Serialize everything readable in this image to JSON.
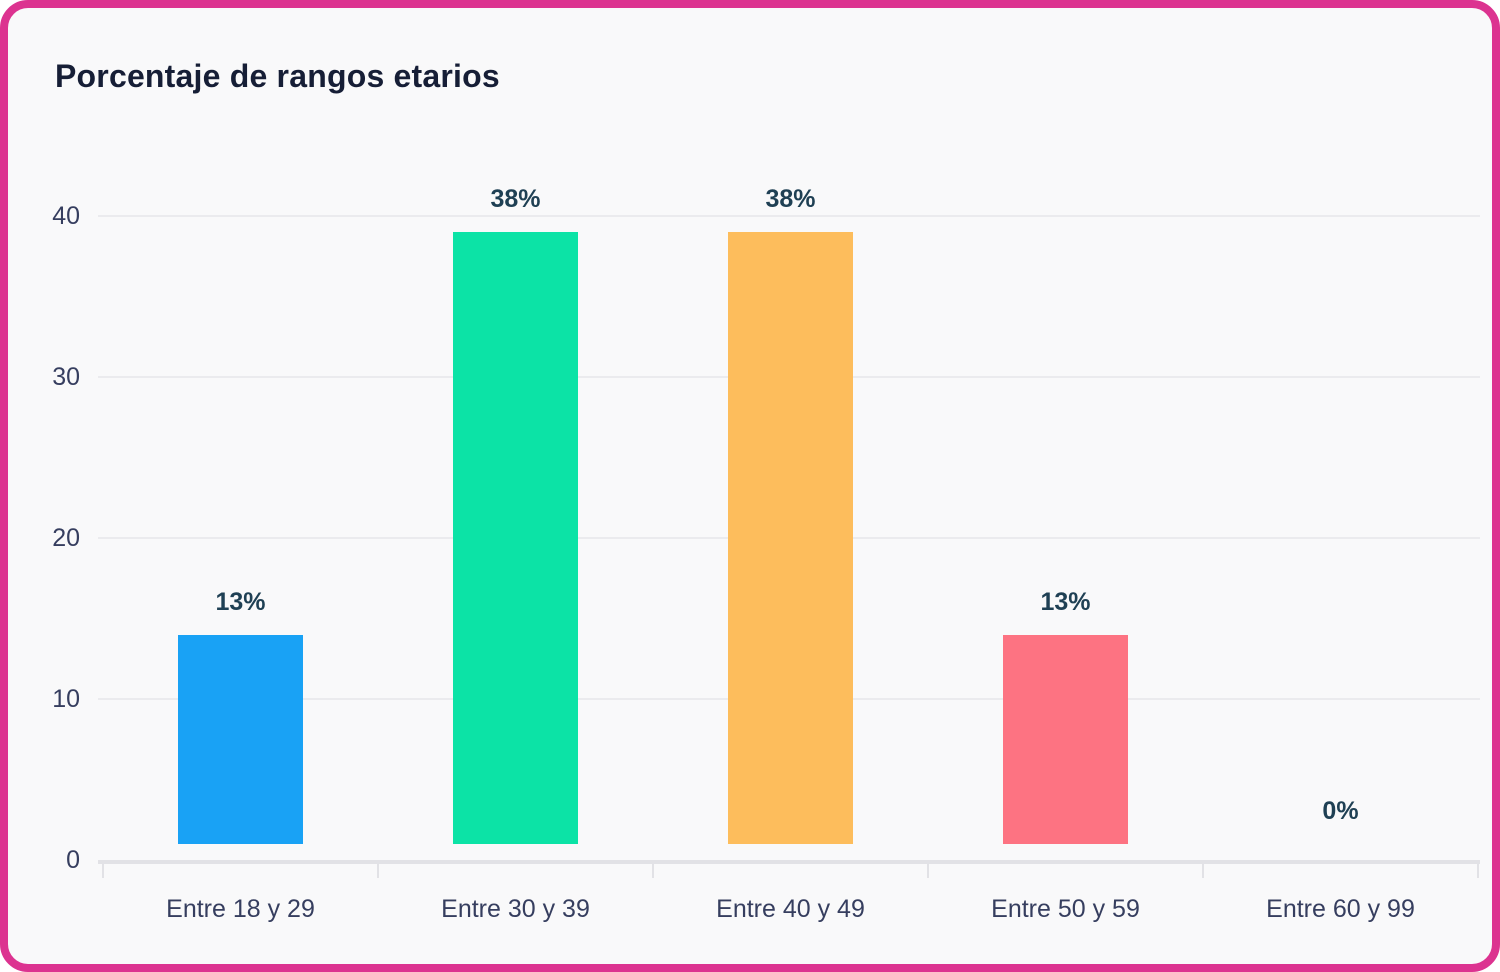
{
  "card": {
    "border_color": "#dc3390",
    "background_color": "#f9f9fa"
  },
  "chart_data": {
    "type": "bar",
    "title": "Porcentaje de rangos etarios",
    "categories": [
      "Entre 18 y 29",
      "Entre 30 y 39",
      "Entre 40 y 49",
      "Entre 50 y 59",
      "Entre 60 y 99"
    ],
    "values": [
      13,
      38,
      38,
      13,
      0
    ],
    "data_labels": [
      "13%",
      "38%",
      "38%",
      "13%",
      "0%"
    ],
    "bar_colors": [
      "#129ff5",
      "#04e2a3",
      "#fdbb57",
      "#fd6e7e",
      "#129ff5"
    ],
    "y_ticks": [
      0,
      10,
      20,
      30,
      40
    ],
    "ylim": [
      0,
      40
    ],
    "xlabel": "",
    "ylabel": "",
    "grid": true,
    "legend_position": "none",
    "value_unit": "%",
    "text_colors": {
      "title": "#161e36",
      "axis_labels": "#363e5f",
      "data_labels": "#1f4054"
    }
  }
}
